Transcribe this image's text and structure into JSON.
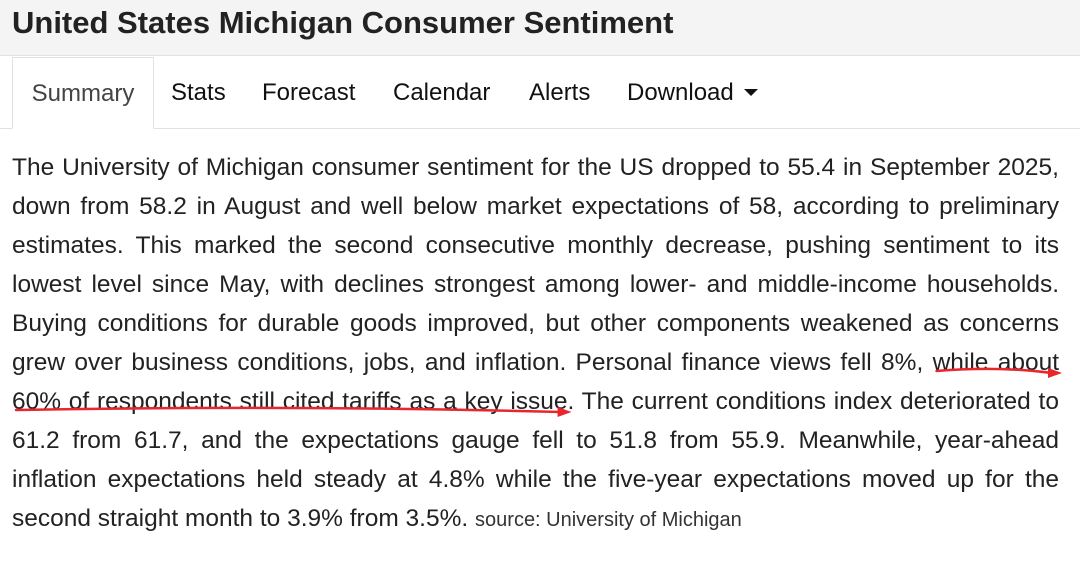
{
  "header": {
    "title": "United States Michigan Consumer Sentiment"
  },
  "tabs": [
    {
      "label": "Summary",
      "active": true
    },
    {
      "label": "Stats",
      "active": false
    },
    {
      "label": "Forecast",
      "active": false
    },
    {
      "label": "Calendar",
      "active": false
    },
    {
      "label": "Alerts",
      "active": false
    },
    {
      "label": "Download",
      "active": false,
      "has_dropdown": true
    }
  ],
  "summary": {
    "text_before": "The University of Michigan consumer sentiment for the US dropped to 55.4 in September 2025, down from 58.2 in August and well below market expectations of 58, according to preliminary estimates. This marked the second consecutive monthly decrease, pushing sentiment to its lowest level since May, with declines strongest among lower- and middle-income households. Buying conditions for durable goods improved, but other components weakened as concerns grew over business conditions, jobs, and inflation. Personal finance views fell 8%, ",
    "highlight": "while about 60% of respondents still cited tariffs as a key issue",
    "text_after": ". The current conditions index deteriorated to 61.2 from 61.7, and the expectations gauge fell to 51.8 from 55.9. Meanwhile, year-ahead inflation expectations held steady at 4.8% while the five-year expectations moved up for the second straight month to 3.9% from 3.5%.",
    "source": "source: University of Michigan"
  },
  "annotation": {
    "color": "#e8262b"
  }
}
